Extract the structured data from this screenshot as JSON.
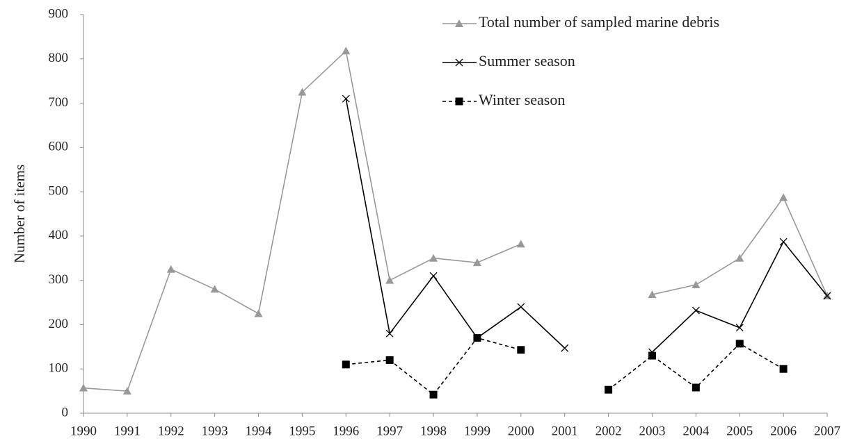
{
  "chart_data": {
    "type": "line",
    "y_label": "Number of items",
    "categories": [
      "1990",
      "1991",
      "1992",
      "1993",
      "1994",
      "1995",
      "1996",
      "1997",
      "1998",
      "1999",
      "2000",
      "2001",
      "2002",
      "2003",
      "2004",
      "2005",
      "2006",
      "2007"
    ],
    "series": [
      {
        "name": "Total number of sampled marine debris",
        "color": "#999999",
        "marker": "triangle",
        "dash": "solid",
        "values": [
          57,
          50,
          325,
          280,
          225,
          725,
          818,
          300,
          350,
          340,
          382,
          null,
          null,
          268,
          290,
          350,
          487,
          265
        ]
      },
      {
        "name": "Summer season",
        "color": "#000000",
        "marker": "x",
        "dash": "solid",
        "values": [
          null,
          null,
          null,
          null,
          null,
          null,
          710,
          180,
          310,
          170,
          240,
          147,
          null,
          138,
          232,
          193,
          387,
          265
        ]
      },
      {
        "name": "Winter season",
        "color": "#000000",
        "marker": "square",
        "dash": "dashed",
        "values": [
          null,
          null,
          null,
          null,
          null,
          null,
          110,
          120,
          42,
          170,
          143,
          null,
          53,
          130,
          58,
          157,
          100,
          null
        ]
      }
    ],
    "ylim": [
      0,
      900
    ],
    "yticks": [
      0,
      100,
      200,
      300,
      400,
      500,
      600,
      700,
      800,
      900
    ],
    "grid": false,
    "legend": "upper right"
  }
}
